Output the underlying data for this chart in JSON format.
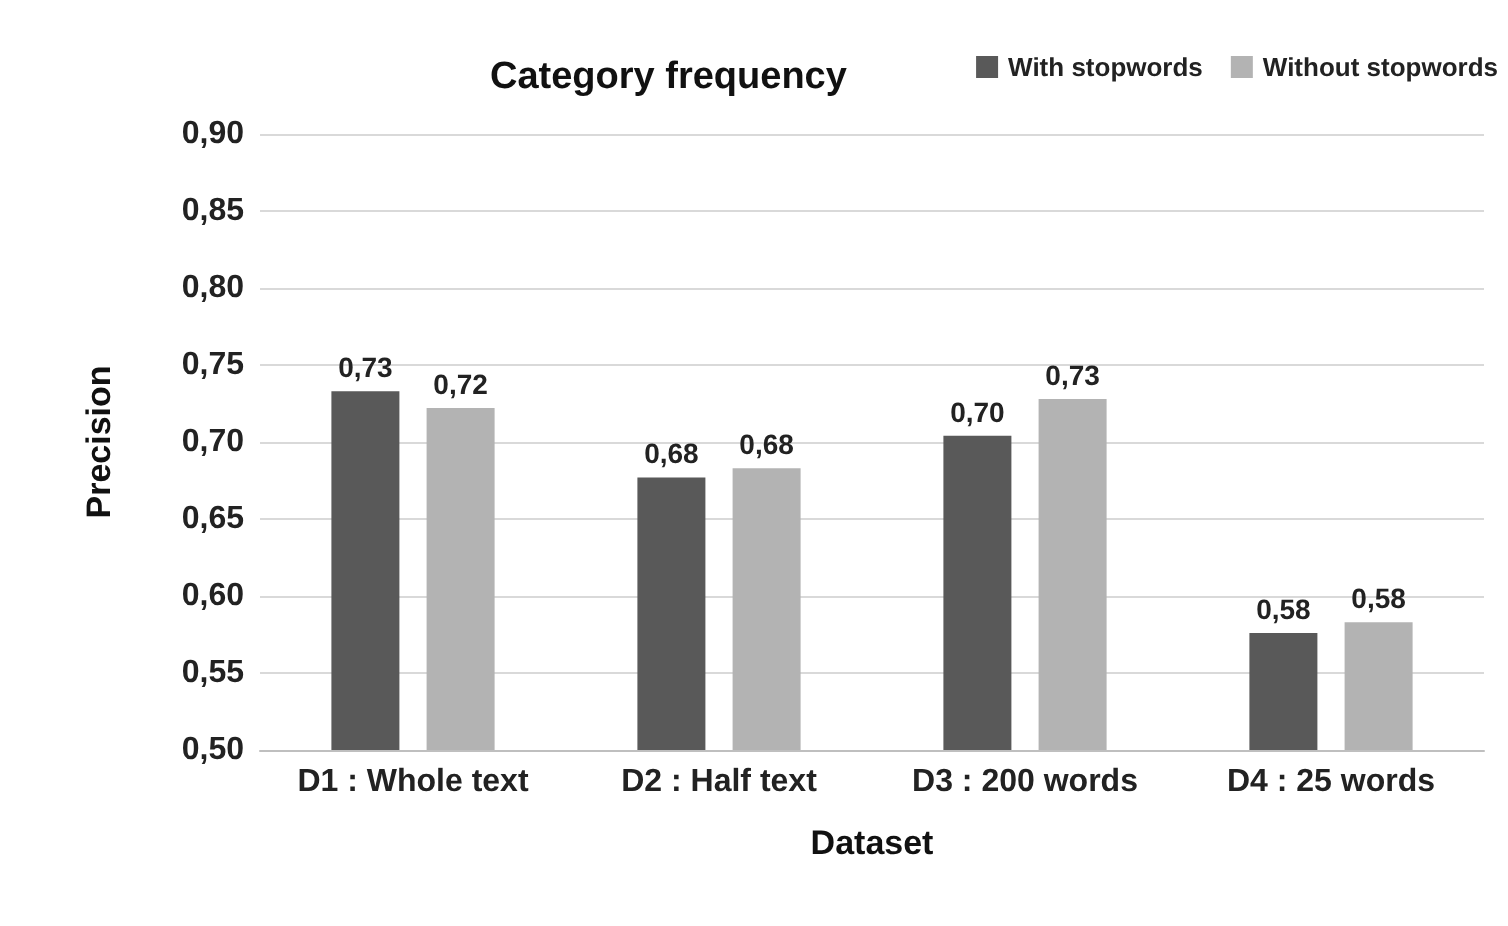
{
  "chart_data": {
    "type": "bar",
    "title": "Category frequency",
    "xlabel": "Dataset",
    "ylabel": "Precision",
    "categories": [
      "D1 : Whole text",
      "D2 : Half text",
      "D3 : 200 words",
      "D4 : 25 words"
    ],
    "series": [
      {
        "name": "With stopwords",
        "color": "#595959",
        "values": [
          0.733,
          0.677,
          0.704,
          0.576
        ],
        "value_labels": [
          "0,73",
          "0,68",
          "0,70",
          "0,58"
        ]
      },
      {
        "name": "Without stopwords",
        "color": "#b3b3b3",
        "values": [
          0.722,
          0.683,
          0.728,
          0.583
        ],
        "value_labels": [
          "0,72",
          "0,68",
          "0,73",
          "0,58"
        ]
      }
    ],
    "ylim": [
      0.5,
      0.9
    ],
    "yticks": [
      {
        "value": 0.5,
        "label": "0,50"
      },
      {
        "value": 0.55,
        "label": "0,55"
      },
      {
        "value": 0.6,
        "label": "0,60"
      },
      {
        "value": 0.65,
        "label": "0,65"
      },
      {
        "value": 0.7,
        "label": "0,70"
      },
      {
        "value": 0.75,
        "label": "0,75"
      },
      {
        "value": 0.8,
        "label": "0,80"
      },
      {
        "value": 0.85,
        "label": "0,85"
      },
      {
        "value": 0.9,
        "label": "0,90"
      }
    ],
    "grid": "y",
    "legend": "top right"
  }
}
